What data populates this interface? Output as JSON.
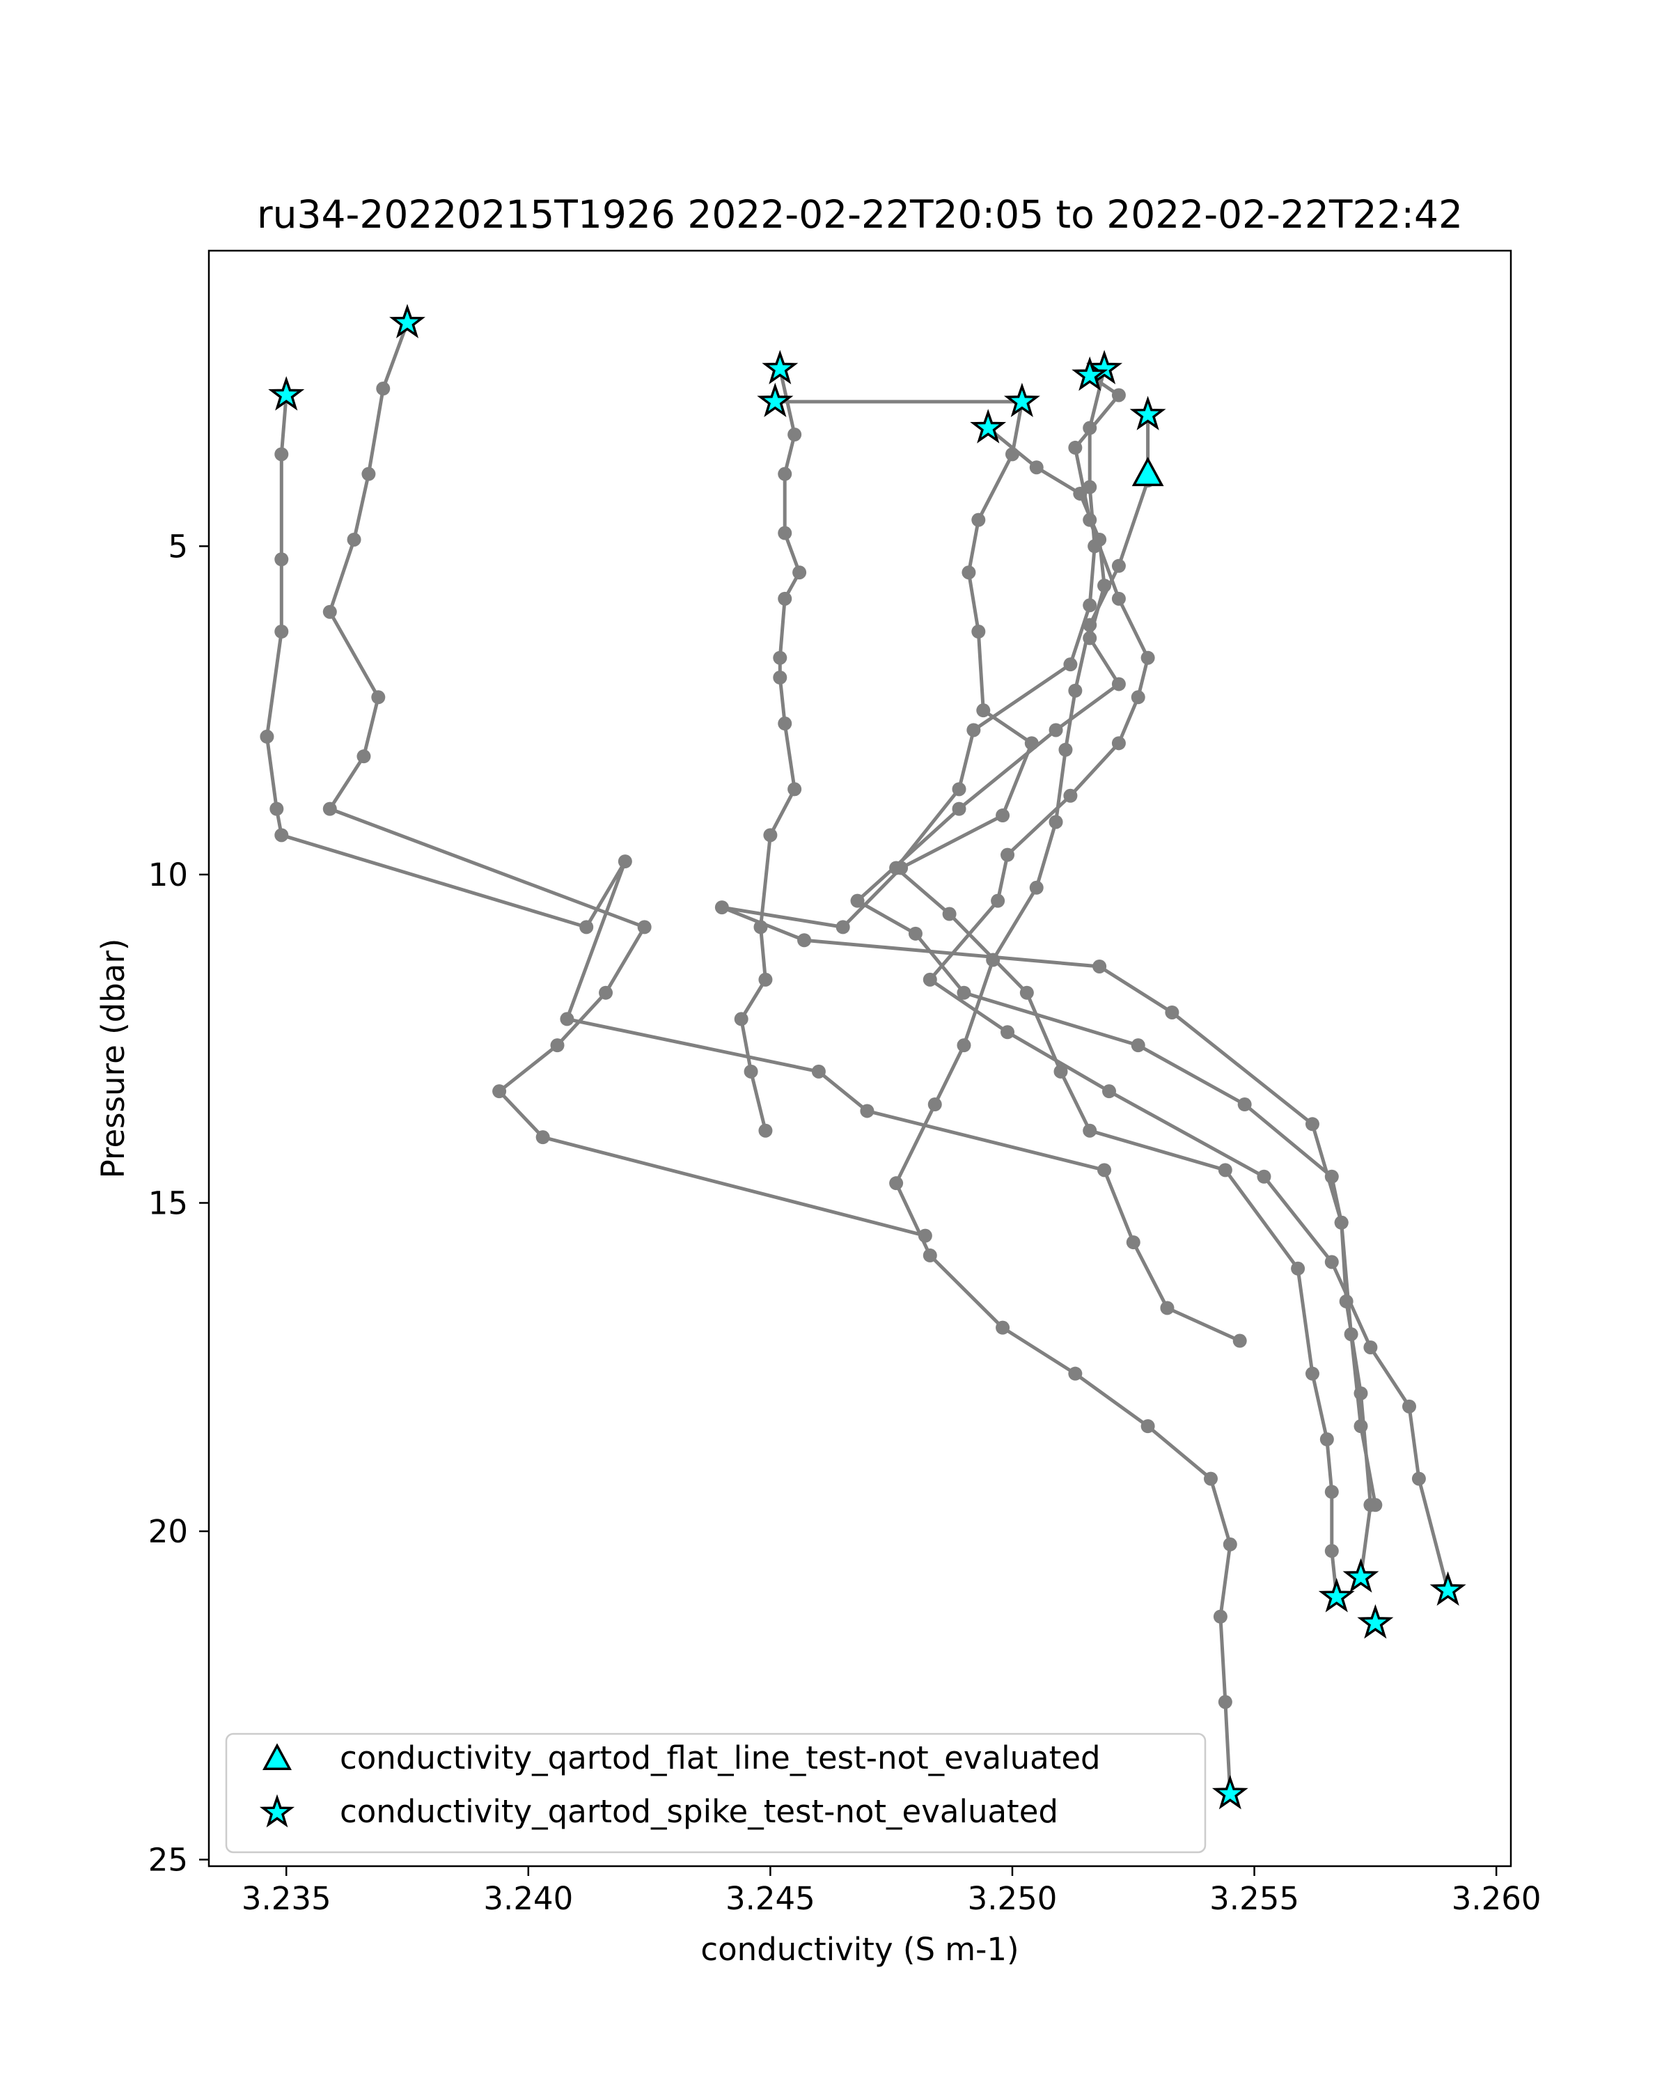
{
  "chart_data": {
    "type": "line",
    "title": "ru34-20220215T1926 2022-02-22T20:05 to 2022-02-22T22:42",
    "xlabel": "conductivity (S m-1)",
    "ylabel": "Pressure (dbar)",
    "xlim": [
      3.2334,
      3.2603
    ],
    "ylim": [
      25.1,
      0.5
    ],
    "y_inverted": true,
    "xticks": [
      3.235,
      3.24,
      3.245,
      3.25,
      3.255,
      3.26
    ],
    "xtick_labels": [
      "3.235",
      "3.240",
      "3.245",
      "3.250",
      "3.255",
      "3.260"
    ],
    "yticks": [
      5,
      10,
      15,
      20,
      25
    ],
    "ytick_labels": [
      "5",
      "10",
      "15",
      "20",
      "25"
    ],
    "grid": false,
    "legend_position": "lower-left",
    "colors": {
      "line": "#808080",
      "marker": "#00ffff",
      "marker_edge": "#000000"
    },
    "series": [
      {
        "x": [
          3.2375,
          3.237,
          3.2367,
          3.2364,
          3.2359,
          3.2369,
          3.2366,
          3.2359,
          3.2424,
          3.2416,
          3.2406,
          3.2394,
          3.2403,
          3.2482
        ],
        "y": [
          1.6,
          2.6,
          3.9,
          4.9,
          6.0,
          7.3,
          8.2,
          9.0,
          10.8,
          11.8,
          12.6,
          13.3,
          14.0,
          15.5
        ]
      },
      {
        "x": [
          3.235,
          3.2349,
          3.2349,
          3.2349,
          3.2346,
          3.2348,
          3.2349,
          3.2412,
          3.242,
          3.2408,
          3.246,
          3.247,
          3.2519,
          3.2525,
          3.2532,
          3.2547
        ],
        "y": [
          2.7,
          3.6,
          5.2,
          6.3,
          7.9,
          9.0,
          9.4,
          10.8,
          9.8,
          12.2,
          13.0,
          13.6,
          14.5,
          15.6,
          16.6,
          17.1
        ]
      },
      {
        "x": [
          3.2452,
          3.2455,
          3.2453,
          3.2453,
          3.2456,
          3.2453,
          3.2452,
          3.2452,
          3.2453,
          3.2455,
          3.245,
          3.2448,
          3.2449,
          3.2444,
          3.2446,
          3.2449
        ],
        "y": [
          2.3,
          3.3,
          3.9,
          4.8,
          5.4,
          5.8,
          6.7,
          7.0,
          7.7,
          8.7,
          9.4,
          10.8,
          11.6,
          12.2,
          13.0,
          13.9
        ]
      },
      {
        "x": [
          3.2451,
          3.2502,
          3.25,
          3.2493,
          3.2491,
          3.2493,
          3.2494,
          3.2504,
          3.2498,
          3.2477,
          3.2465,
          3.244,
          3.2457,
          3.2518,
          3.2533,
          3.2562,
          3.2568,
          3.257,
          3.2572,
          3.2575
        ],
        "y": [
          2.8,
          2.8,
          3.6,
          4.6,
          5.4,
          6.3,
          7.5,
          8.0,
          9.1,
          9.9,
          10.8,
          10.5,
          11.0,
          11.4,
          12.1,
          13.8,
          15.3,
          17.0,
          18.4,
          19.6
        ]
      },
      {
        "x": [
          3.2495,
          3.2505,
          3.2514,
          3.2518,
          3.2519,
          3.2516,
          3.2522,
          3.2509,
          3.2489,
          3.2468,
          3.248,
          3.249,
          3.2526,
          3.2548,
          3.2566,
          3.2568,
          3.2569,
          3.2572,
          3.2574,
          3.2572
        ],
        "y": [
          3.2,
          3.8,
          4.2,
          4.9,
          5.6,
          6.4,
          7.1,
          7.8,
          9.0,
          10.4,
          10.9,
          11.8,
          12.6,
          13.5,
          14.6,
          15.3,
          16.5,
          17.9,
          19.6,
          20.7
        ]
      },
      {
        "x": [
          3.2519,
          3.2516,
          3.2516,
          3.2517,
          3.2516,
          3.2512,
          3.2492,
          3.2489,
          3.2476,
          3.2487,
          3.2503,
          3.251,
          3.2516,
          3.2544,
          3.2559,
          3.2562,
          3.2565,
          3.2566,
          3.2566,
          3.2567
        ],
        "y": [
          2.3,
          3.2,
          4.1,
          5.0,
          5.9,
          6.8,
          7.8,
          8.7,
          9.9,
          10.6,
          11.8,
          13.0,
          13.9,
          14.5,
          16.0,
          17.6,
          18.6,
          19.4,
          20.3,
          21.0
        ]
      },
      {
        "x": [
          3.2528,
          3.2528,
          3.2522,
          3.2516,
          3.2513,
          3.2511,
          3.2509,
          3.2505,
          3.2496,
          3.249,
          3.2484,
          3.2476,
          3.2483,
          3.2498,
          3.2513,
          3.2528,
          3.2541,
          3.2545,
          3.2543,
          3.2544,
          3.2545
        ],
        "y": [
          3.0,
          4.0,
          5.3,
          6.2,
          7.2,
          8.1,
          9.2,
          10.2,
          11.3,
          12.6,
          13.5,
          14.7,
          15.8,
          16.9,
          17.6,
          18.4,
          19.2,
          20.2,
          21.3,
          22.6,
          24.0
        ]
      },
      {
        "x": [
          3.2516,
          3.2522,
          3.2513,
          3.2516,
          3.2522,
          3.2528,
          3.2526,
          3.2522,
          3.2512,
          3.2499,
          3.2497,
          3.2483,
          3.2499,
          3.252,
          3.2552,
          3.2566,
          3.2574,
          3.2582,
          3.2584,
          3.259
        ],
        "y": [
          2.4,
          2.7,
          3.5,
          4.6,
          5.8,
          6.7,
          7.3,
          8.0,
          8.8,
          9.7,
          10.4,
          11.6,
          12.4,
          13.3,
          14.6,
          15.9,
          17.2,
          18.1,
          19.2,
          20.9
        ]
      }
    ],
    "flat_line_markers": {
      "x": [
        3.2528
      ],
      "y": [
        3.9
      ]
    },
    "spike_markers": {
      "x": [
        3.2375,
        3.235,
        3.2452,
        3.2451,
        3.2502,
        3.2495,
        3.2519,
        3.2516,
        3.2528,
        3.2572,
        3.2567,
        3.2575,
        3.259,
        3.2545
      ],
      "y": [
        1.6,
        2.7,
        2.3,
        2.8,
        2.8,
        3.2,
        2.3,
        2.4,
        3.0,
        20.7,
        21.0,
        21.4,
        20.9,
        24.0
      ]
    },
    "legend": [
      {
        "label": "conductivity_qartod_flat_line_test-not_evaluated",
        "marker": "triangle"
      },
      {
        "label": "conductivity_qartod_spike_test-not_evaluated",
        "marker": "star"
      }
    ]
  }
}
